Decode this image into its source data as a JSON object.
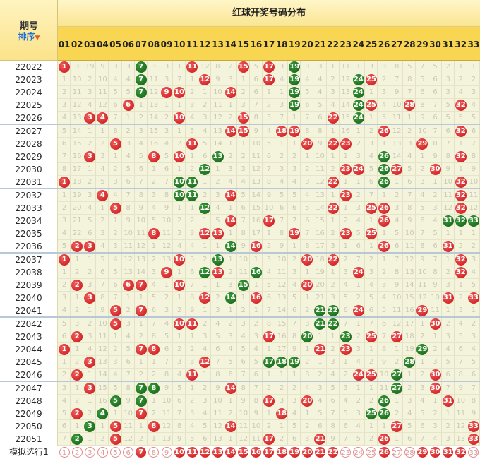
{
  "header": {
    "period_label": "期号",
    "sort_label": "排序",
    "title": "红球开奖号码分布",
    "numbers": [
      "01",
      "02",
      "03",
      "04",
      "05",
      "06",
      "07",
      "08",
      "09",
      "10",
      "11",
      "12",
      "13",
      "14",
      "15",
      "16",
      "17",
      "18",
      "19",
      "20",
      "21",
      "22",
      "23",
      "24",
      "25",
      "26",
      "27",
      "28",
      "29",
      "30",
      "31",
      "32",
      "33"
    ]
  },
  "colors": {
    "red_ball": "#d61f1f",
    "green_ball": "#1f7a1f",
    "header_bg": "#f9d651",
    "cell_bg": "#f4f3dc"
  },
  "rows": [
    {
      "period": "22022",
      "balls": [
        1,
        7,
        11,
        15,
        17,
        19
      ],
      "green": [
        7,
        19
      ],
      "miss": [
        null,
        3,
        19,
        9,
        3,
        3,
        null,
        3,
        3,
        1,
        null,
        12,
        8,
        2,
        null,
        5,
        null,
        3,
        null,
        3,
        3,
        1,
        11,
        1,
        3,
        3,
        8,
        5,
        7,
        5,
        2,
        1,
        1
      ]
    },
    {
      "period": "22023",
      "balls": [
        7,
        12,
        17,
        19,
        24,
        25
      ],
      "green": [
        7,
        19,
        24
      ],
      "miss": [
        1,
        10,
        2,
        10,
        4,
        4,
        null,
        11,
        3,
        7,
        1,
        null,
        9,
        3,
        1,
        6,
        null,
        4,
        null,
        4,
        4,
        2,
        12,
        null,
        null,
        2,
        7,
        8,
        5,
        6,
        3,
        2,
        2
      ]
    },
    {
      "period": "22024",
      "balls": [
        7,
        9,
        10,
        14,
        19,
        24
      ],
      "green": [
        7,
        19,
        24
      ],
      "miss": [
        2,
        11,
        3,
        11,
        5,
        5,
        null,
        12,
        null,
        null,
        2,
        1,
        10,
        null,
        2,
        6,
        1,
        1,
        null,
        5,
        4,
        3,
        13,
        null,
        1,
        3,
        9,
        7,
        6,
        6,
        3,
        4,
        3
      ]
    },
    {
      "period": "22025",
      "balls": [
        6,
        19,
        24,
        25,
        28,
        32
      ],
      "green": [
        19,
        24
      ],
      "miss": [
        3,
        12,
        4,
        12,
        6,
        null,
        1,
        13,
        1,
        1,
        3,
        2,
        11,
        1,
        3,
        7,
        2,
        3,
        null,
        6,
        5,
        4,
        14,
        null,
        null,
        4,
        10,
        null,
        8,
        7,
        5,
        null,
        4
      ]
    },
    {
      "period": "22026",
      "balls": [
        3,
        4,
        10,
        15,
        22,
        24
      ],
      "green": [
        24
      ],
      "miss": [
        4,
        13,
        null,
        null,
        7,
        1,
        2,
        14,
        2,
        null,
        4,
        3,
        12,
        2,
        null,
        8,
        3,
        7,
        1,
        7,
        6,
        null,
        15,
        null,
        1,
        5,
        11,
        1,
        9,
        6,
        5,
        5,
        5
      ]
    },
    {
      "period": "22027",
      "balls": [
        14,
        15,
        18,
        19,
        26,
        32
      ],
      "green": [],
      "miss": [
        5,
        14,
        1,
        1,
        8,
        2,
        3,
        15,
        3,
        1,
        5,
        4,
        13,
        null,
        null,
        9,
        4,
        null,
        null,
        8,
        8,
        1,
        16,
        1,
        2,
        null,
        12,
        2,
        10,
        7,
        6,
        null,
        6
      ]
    },
    {
      "period": "22028",
      "balls": [
        5,
        11,
        20,
        22,
        23,
        29
      ],
      "green": [],
      "miss": [
        6,
        15,
        2,
        2,
        null,
        3,
        4,
        16,
        4,
        2,
        null,
        5,
        14,
        1,
        1,
        10,
        5,
        1,
        1,
        null,
        9,
        null,
        null,
        2,
        3,
        1,
        13,
        3,
        null,
        8,
        7,
        1,
        7
      ]
    },
    {
      "period": "22029",
      "balls": [
        3,
        8,
        10,
        13,
        26,
        32
      ],
      "green": [
        13,
        26
      ],
      "miss": [
        7,
        16,
        null,
        3,
        1,
        4,
        5,
        null,
        5,
        null,
        1,
        6,
        null,
        2,
        2,
        11,
        6,
        2,
        2,
        1,
        10,
        1,
        1,
        3,
        4,
        null,
        14,
        4,
        1,
        9,
        8,
        null,
        8
      ]
    },
    {
      "period": "22030",
      "balls": [
        12,
        23,
        24,
        26,
        27,
        30
      ],
      "green": [
        12,
        26
      ],
      "miss": [
        8,
        17,
        1,
        4,
        2,
        5,
        6,
        1,
        6,
        1,
        2,
        null,
        1,
        3,
        3,
        12,
        7,
        3,
        3,
        2,
        11,
        2,
        null,
        null,
        5,
        null,
        null,
        5,
        2,
        null,
        9,
        1,
        9
      ]
    },
    {
      "period": "22031",
      "balls": [
        1,
        10,
        11,
        22,
        26,
        32
      ],
      "green": [
        10,
        11,
        26
      ],
      "miss": [
        null,
        18,
        2,
        5,
        3,
        6,
        7,
        2,
        7,
        null,
        null,
        1,
        2,
        4,
        4,
        13,
        8,
        4,
        4,
        3,
        12,
        null,
        1,
        1,
        6,
        null,
        1,
        6,
        3,
        1,
        10,
        null,
        10
      ]
    },
    {
      "period": "22032",
      "balls": [
        4,
        10,
        11,
        14,
        23,
        32
      ],
      "green": [
        10,
        11
      ],
      "miss": [
        1,
        19,
        3,
        null,
        4,
        7,
        8,
        3,
        8,
        null,
        null,
        2,
        3,
        null,
        5,
        14,
        9,
        5,
        5,
        4,
        13,
        1,
        null,
        2,
        7,
        1,
        2,
        7,
        4,
        2,
        11,
        null,
        11
      ]
    },
    {
      "period": "22033",
      "balls": [
        5,
        12,
        22,
        25,
        26,
        32
      ],
      "green": [
        12
      ],
      "miss": [
        2,
        20,
        4,
        1,
        null,
        8,
        9,
        4,
        9,
        1,
        1,
        null,
        4,
        1,
        6,
        15,
        10,
        6,
        6,
        5,
        14,
        null,
        1,
        3,
        null,
        null,
        3,
        8,
        5,
        3,
        12,
        null,
        12
      ]
    },
    {
      "period": "22034",
      "balls": [
        14,
        17,
        26,
        31,
        32,
        33
      ],
      "green": [
        31,
        32,
        33
      ],
      "miss": [
        3,
        21,
        5,
        2,
        1,
        9,
        10,
        5,
        10,
        2,
        2,
        1,
        5,
        null,
        7,
        16,
        null,
        7,
        7,
        6,
        15,
        1,
        2,
        4,
        1,
        null,
        4,
        9,
        6,
        4,
        null,
        null,
        null
      ]
    },
    {
      "period": "22035",
      "balls": [
        8,
        12,
        13,
        19,
        23,
        25
      ],
      "green": [],
      "miss": [
        4,
        22,
        6,
        3,
        2,
        10,
        11,
        null,
        11,
        3,
        3,
        null,
        null,
        1,
        8,
        17,
        1,
        8,
        null,
        7,
        16,
        2,
        null,
        5,
        null,
        1,
        5,
        10,
        7,
        5,
        1,
        1,
        1
      ]
    },
    {
      "period": "22036",
      "balls": [
        2,
        3,
        14,
        16,
        26,
        31
      ],
      "green": [
        14
      ],
      "miss": [
        5,
        null,
        null,
        4,
        3,
        11,
        12,
        1,
        12,
        4,
        4,
        1,
        1,
        null,
        9,
        null,
        2,
        9,
        1,
        8,
        17,
        3,
        1,
        6,
        1,
        null,
        6,
        11,
        8,
        6,
        null,
        2,
        2
      ]
    },
    {
      "period": "22037",
      "balls": [
        1,
        10,
        13,
        20,
        22,
        32
      ],
      "green": [
        13
      ],
      "miss": [
        null,
        1,
        1,
        5,
        4,
        12,
        13,
        2,
        13,
        null,
        5,
        2,
        null,
        1,
        10,
        1,
        3,
        10,
        2,
        null,
        18,
        null,
        2,
        7,
        2,
        1,
        7,
        12,
        9,
        7,
        1,
        null,
        3
      ]
    },
    {
      "period": "22038",
      "balls": [
        9,
        12,
        13,
        16,
        24,
        32
      ],
      "green": [
        12,
        16
      ],
      "miss": [
        1,
        2,
        2,
        6,
        5,
        13,
        14,
        3,
        null,
        1,
        6,
        null,
        null,
        2,
        11,
        null,
        4,
        11,
        3,
        1,
        19,
        1,
        3,
        null,
        3,
        2,
        8,
        13,
        10,
        8,
        2,
        null,
        4
      ]
    },
    {
      "period": "22039",
      "balls": [
        2,
        6,
        7,
        10,
        15,
        20
      ],
      "green": [
        15
      ],
      "miss": [
        2,
        null,
        3,
        7,
        6,
        null,
        null,
        4,
        1,
        null,
        7,
        1,
        1,
        3,
        null,
        1,
        5,
        12,
        4,
        null,
        20,
        2,
        4,
        1,
        4,
        3,
        9,
        14,
        11,
        9,
        3,
        1,
        5
      ]
    },
    {
      "period": "22040",
      "balls": [
        3,
        12,
        14,
        16,
        31,
        33
      ],
      "green": [
        14
      ],
      "miss": [
        3,
        1,
        null,
        8,
        7,
        1,
        1,
        5,
        2,
        1,
        8,
        null,
        2,
        null,
        1,
        null,
        6,
        13,
        5,
        1,
        21,
        3,
        5,
        2,
        5,
        4,
        10,
        15,
        12,
        10,
        null,
        2,
        null
      ]
    },
    {
      "period": "22041",
      "balls": [
        5,
        7,
        21,
        22,
        24,
        29
      ],
      "green": [
        21,
        22
      ],
      "miss": [
        4,
        2,
        1,
        9,
        null,
        2,
        null,
        6,
        3,
        2,
        9,
        1,
        3,
        1,
        2,
        1,
        7,
        14,
        6,
        2,
        null,
        null,
        6,
        null,
        6,
        5,
        11,
        16,
        null,
        11,
        1,
        3,
        1
      ]
    },
    {
      "period": "22042",
      "balls": [
        5,
        10,
        11,
        21,
        22,
        30
      ],
      "green": [
        21,
        22
      ],
      "miss": [
        5,
        3,
        2,
        10,
        null,
        3,
        1,
        7,
        4,
        null,
        null,
        2,
        4,
        2,
        3,
        2,
        8,
        15,
        7,
        3,
        null,
        null,
        7,
        1,
        7,
        6,
        12,
        17,
        1,
        null,
        2,
        4,
        2
      ]
    },
    {
      "period": "22043",
      "balls": [
        2,
        17,
        20,
        23,
        25,
        27
      ],
      "green": [
        20,
        23
      ],
      "miss": [
        6,
        null,
        3,
        11,
        1,
        4,
        2,
        8,
        5,
        1,
        1,
        3,
        5,
        3,
        4,
        3,
        null,
        16,
        8,
        null,
        1,
        1,
        null,
        2,
        null,
        7,
        null,
        18,
        2,
        1,
        3,
        5,
        3
      ]
    },
    {
      "period": "22044",
      "balls": [
        1,
        7,
        8,
        21,
        23,
        29
      ],
      "green": [
        29
      ],
      "miss": [
        null,
        1,
        4,
        12,
        2,
        5,
        null,
        null,
        6,
        2,
        2,
        4,
        6,
        4,
        5,
        4,
        1,
        17,
        9,
        1,
        null,
        2,
        null,
        3,
        1,
        8,
        1,
        19,
        null,
        2,
        4,
        6,
        4
      ]
    },
    {
      "period": "22045",
      "balls": [
        3,
        12,
        17,
        18,
        19,
        28
      ],
      "green": [
        17,
        18,
        19,
        28
      ],
      "miss": [
        1,
        2,
        null,
        13,
        3,
        6,
        1,
        1,
        7,
        3,
        3,
        null,
        7,
        5,
        6,
        5,
        null,
        null,
        null,
        2,
        1,
        3,
        1,
        4,
        2,
        9,
        2,
        null,
        1,
        3,
        5,
        7,
        5
      ]
    },
    {
      "period": "22046",
      "balls": [
        2,
        11,
        24,
        25,
        27,
        30
      ],
      "green": [
        27
      ],
      "miss": [
        2,
        null,
        1,
        14,
        4,
        7,
        2,
        2,
        8,
        4,
        null,
        1,
        8,
        6,
        7,
        6,
        1,
        1,
        1,
        3,
        2,
        4,
        2,
        null,
        null,
        10,
        null,
        1,
        2,
        null,
        6,
        8,
        6
      ]
    },
    {
      "period": "22047",
      "balls": [
        3,
        7,
        8,
        14,
        27,
        30
      ],
      "green": [
        7,
        8,
        27
      ],
      "miss": [
        3,
        1,
        null,
        15,
        5,
        8,
        null,
        null,
        9,
        5,
        1,
        2,
        9,
        null,
        8,
        7,
        2,
        2,
        2,
        4,
        3,
        5,
        3,
        1,
        1,
        11,
        null,
        2,
        3,
        null,
        7,
        9,
        7
      ]
    },
    {
      "period": "22048",
      "balls": [
        5,
        7,
        17,
        20,
        26,
        31
      ],
      "green": [
        5,
        7,
        26
      ],
      "miss": [
        4,
        2,
        1,
        16,
        null,
        9,
        null,
        1,
        10,
        6,
        2,
        3,
        10,
        1,
        9,
        8,
        null,
        3,
        3,
        null,
        4,
        6,
        4,
        2,
        2,
        null,
        1,
        3,
        4,
        1,
        null,
        10,
        8
      ]
    },
    {
      "period": "22049",
      "balls": [
        2,
        4,
        7,
        18,
        25,
        26
      ],
      "green": [
        4,
        25,
        26
      ],
      "miss": [
        5,
        null,
        2,
        null,
        1,
        10,
        null,
        2,
        11,
        7,
        3,
        4,
        11,
        2,
        10,
        9,
        1,
        null,
        4,
        1,
        5,
        7,
        5,
        3,
        null,
        null,
        2,
        4,
        5,
        2,
        1,
        11,
        9
      ]
    },
    {
      "period": "22050",
      "balls": [
        3,
        5,
        8,
        14,
        27,
        33
      ],
      "green": [
        3
      ],
      "miss": [
        6,
        1,
        null,
        1,
        null,
        11,
        1,
        null,
        12,
        8,
        4,
        5,
        12,
        null,
        11,
        10,
        2,
        1,
        5,
        2,
        6,
        8,
        6,
        4,
        1,
        1,
        null,
        5,
        6,
        3,
        2,
        12,
        null
      ]
    },
    {
      "period": "22051",
      "balls": [
        2,
        5,
        17,
        21,
        26,
        33
      ],
      "green": [
        2
      ],
      "miss": [
        7,
        null,
        1,
        2,
        null,
        12,
        2,
        1,
        13,
        9,
        5,
        6,
        13,
        1,
        12,
        11,
        null,
        2,
        6,
        3,
        null,
        9,
        7,
        5,
        2,
        null,
        1,
        6,
        7,
        4,
        3,
        13,
        null
      ]
    }
  ],
  "simulation": {
    "label": "模拟选行1",
    "selected": [
      7,
      10,
      11,
      12,
      13,
      14,
      15,
      16,
      17,
      18,
      19,
      20,
      21,
      22,
      26,
      29,
      30,
      31,
      32
    ]
  }
}
